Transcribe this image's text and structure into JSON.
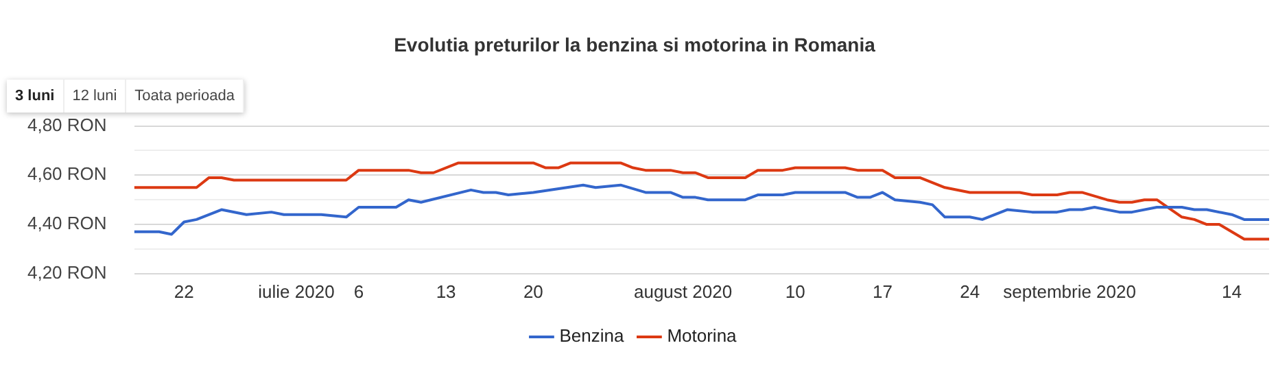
{
  "chart_data": {
    "type": "line",
    "title": "Evolutia preturilor la benzina si motorina in Romania",
    "annotations": [
      "3 luni",
      "12 luni",
      "Toata perioada"
    ],
    "xlim": [
      "2020-06-18",
      "2020-09-17"
    ],
    "xticks": [
      {
        "value": "2020-06-22",
        "label": "22"
      },
      {
        "value": "2020-07-01",
        "label": "iulie 2020"
      },
      {
        "value": "2020-07-06",
        "label": "6"
      },
      {
        "value": "2020-07-13",
        "label": "13"
      },
      {
        "value": "2020-07-20",
        "label": "20"
      },
      {
        "value": "2020-08-01",
        "label": "august 2020"
      },
      {
        "value": "2020-08-10",
        "label": "10"
      },
      {
        "value": "2020-08-17",
        "label": "17"
      },
      {
        "value": "2020-08-24",
        "label": "24"
      },
      {
        "value": "2020-09-01",
        "label": "septembrie 2020"
      },
      {
        "value": "2020-09-14",
        "label": "14"
      }
    ],
    "ylim": [
      4.2,
      4.8
    ],
    "yticks": [
      {
        "value": 4.2,
        "label": "4,20 RON"
      },
      {
        "value": 4.3,
        "label": null
      },
      {
        "value": 4.4,
        "label": "4,40 RON"
      },
      {
        "value": 4.5,
        "label": null
      },
      {
        "value": 4.6,
        "label": "4,60 RON"
      },
      {
        "value": 4.7,
        "label": null
      },
      {
        "value": 4.8,
        "label": "4,80 RON"
      }
    ],
    "grid": "y",
    "legend": "bottom",
    "marker": "none",
    "line_style": "solid",
    "series": [
      {
        "name": "Benzina",
        "color": "#3366cc",
        "x": [
          "2020-06-18",
          "2020-06-20",
          "2020-06-21",
          "2020-06-22",
          "2020-06-23",
          "2020-06-25",
          "2020-06-27",
          "2020-06-29",
          "2020-06-30",
          "2020-07-03",
          "2020-07-05",
          "2020-07-06",
          "2020-07-09",
          "2020-07-10",
          "2020-07-11",
          "2020-07-15",
          "2020-07-16",
          "2020-07-17",
          "2020-07-18",
          "2020-07-20",
          "2020-07-24",
          "2020-07-25",
          "2020-07-27",
          "2020-07-29",
          "2020-07-31",
          "2020-08-01",
          "2020-08-02",
          "2020-08-03",
          "2020-08-06",
          "2020-08-07",
          "2020-08-09",
          "2020-08-10",
          "2020-08-14",
          "2020-08-15",
          "2020-08-16",
          "2020-08-17",
          "2020-08-18",
          "2020-08-20",
          "2020-08-21",
          "2020-08-22",
          "2020-08-24",
          "2020-08-25",
          "2020-08-27",
          "2020-08-29",
          "2020-08-31",
          "2020-09-01",
          "2020-09-02",
          "2020-09-03",
          "2020-09-05",
          "2020-09-06",
          "2020-09-08",
          "2020-09-10",
          "2020-09-11",
          "2020-09-12",
          "2020-09-14",
          "2020-09-15",
          "2020-09-17"
        ],
        "values": [
          4.37,
          4.37,
          4.36,
          4.41,
          4.42,
          4.46,
          4.44,
          4.45,
          4.44,
          4.44,
          4.43,
          4.47,
          4.47,
          4.5,
          4.49,
          4.54,
          4.53,
          4.53,
          4.52,
          4.53,
          4.56,
          4.55,
          4.56,
          4.53,
          4.53,
          4.51,
          4.51,
          4.5,
          4.5,
          4.52,
          4.52,
          4.53,
          4.53,
          4.51,
          4.51,
          4.53,
          4.5,
          4.49,
          4.48,
          4.43,
          4.43,
          4.42,
          4.46,
          4.45,
          4.45,
          4.46,
          4.46,
          4.47,
          4.45,
          4.45,
          4.47,
          4.47,
          4.46,
          4.46,
          4.44,
          4.42,
          4.42
        ]
      },
      {
        "name": "Motorina",
        "color": "#dc3912",
        "x": [
          "2020-06-18",
          "2020-06-23",
          "2020-06-24",
          "2020-06-25",
          "2020-06-26",
          "2020-07-05",
          "2020-07-06",
          "2020-07-07",
          "2020-07-10",
          "2020-07-11",
          "2020-07-12",
          "2020-07-14",
          "2020-07-20",
          "2020-07-21",
          "2020-07-22",
          "2020-07-23",
          "2020-07-27",
          "2020-07-28",
          "2020-07-29",
          "2020-07-31",
          "2020-08-01",
          "2020-08-02",
          "2020-08-03",
          "2020-08-06",
          "2020-08-07",
          "2020-08-09",
          "2020-08-10",
          "2020-08-14",
          "2020-08-15",
          "2020-08-17",
          "2020-08-18",
          "2020-08-20",
          "2020-08-22",
          "2020-08-24",
          "2020-08-28",
          "2020-08-29",
          "2020-08-31",
          "2020-09-01",
          "2020-09-02",
          "2020-09-04",
          "2020-09-05",
          "2020-09-06",
          "2020-09-07",
          "2020-09-08",
          "2020-09-10",
          "2020-09-11",
          "2020-09-12",
          "2020-09-13",
          "2020-09-15",
          "2020-09-17"
        ],
        "values": [
          4.55,
          4.55,
          4.59,
          4.59,
          4.58,
          4.58,
          4.62,
          4.62,
          4.62,
          4.61,
          4.61,
          4.65,
          4.65,
          4.63,
          4.63,
          4.65,
          4.65,
          4.63,
          4.62,
          4.62,
          4.61,
          4.61,
          4.59,
          4.59,
          4.62,
          4.62,
          4.63,
          4.63,
          4.62,
          4.62,
          4.59,
          4.59,
          4.55,
          4.53,
          4.53,
          4.52,
          4.52,
          4.53,
          4.53,
          4.5,
          4.49,
          4.49,
          4.5,
          4.5,
          4.43,
          4.42,
          4.4,
          4.4,
          4.34,
          4.34
        ]
      }
    ]
  }
}
